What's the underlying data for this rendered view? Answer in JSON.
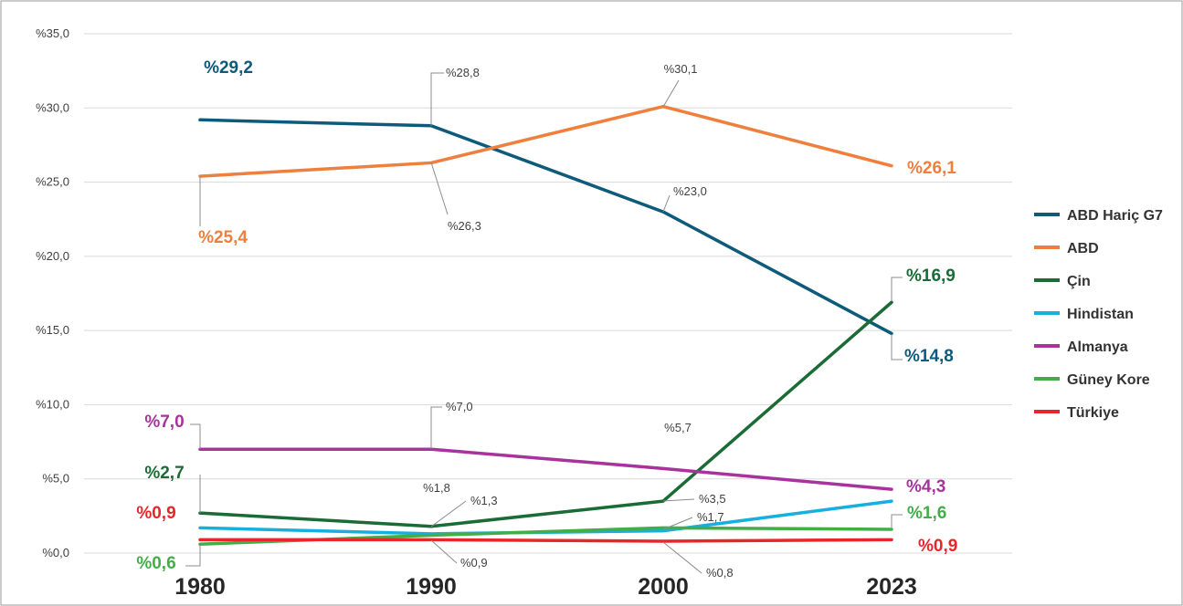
{
  "chart_data": {
    "type": "line",
    "categories": [
      "1980",
      "1990",
      "2000",
      "2023"
    ],
    "ylim": [
      0,
      35
    ],
    "yticks": [
      {
        "value": 0,
        "label": "%0,0"
      },
      {
        "value": 5,
        "label": "%5,0"
      },
      {
        "value": 10,
        "label": "%10,0"
      },
      {
        "value": 15,
        "label": "%15,0"
      },
      {
        "value": 20,
        "label": "%20,0"
      },
      {
        "value": 25,
        "label": "%25,0"
      },
      {
        "value": 30,
        "label": "%30,0"
      },
      {
        "value": 35,
        "label": "%35,0"
      }
    ],
    "grid": true,
    "legend_position": "right",
    "series": [
      {
        "name": "ABD Hariç G7",
        "color": "#0d5a7a",
        "values": [
          29.2,
          28.8,
          23.0,
          14.8
        ],
        "labels": [
          "%29,2",
          "%28,8",
          "%23,0",
          "%14,8"
        ]
      },
      {
        "name": "ABD",
        "color": "#ef7f3c",
        "values": [
          25.4,
          26.3,
          30.1,
          26.1
        ],
        "labels": [
          "%25,4",
          "%26,3",
          "%30,1",
          "%26,1"
        ]
      },
      {
        "name": "Çin",
        "color": "#1a6b35",
        "values": [
          2.7,
          1.8,
          3.5,
          16.9
        ],
        "labels": [
          "%2,7",
          "%1,8",
          "%3,5",
          "%16,9"
        ]
      },
      {
        "name": "Hindistan",
        "color": "#16b0de",
        "values": [
          1.7,
          1.3,
          1.5,
          3.5
        ],
        "labels": [
          "",
          "%1,3",
          "",
          ""
        ]
      },
      {
        "name": "Almanya",
        "color": "#a6349c",
        "values": [
          7.0,
          7.0,
          5.7,
          4.3
        ],
        "labels": [
          "%7,0",
          "%7,0",
          "%5,7",
          "%4,3"
        ]
      },
      {
        "name": "Güney Kore",
        "color": "#43ad48",
        "values": [
          0.6,
          1.2,
          1.7,
          1.6
        ],
        "labels": [
          "%0,6",
          "",
          "%1,7",
          "%1,6"
        ]
      },
      {
        "name": "Türkiye",
        "color": "#e8262a",
        "values": [
          0.9,
          0.9,
          0.8,
          0.9
        ],
        "labels": [
          "%0,9",
          "%0,9",
          "%0,8",
          "%0,9"
        ]
      }
    ]
  }
}
